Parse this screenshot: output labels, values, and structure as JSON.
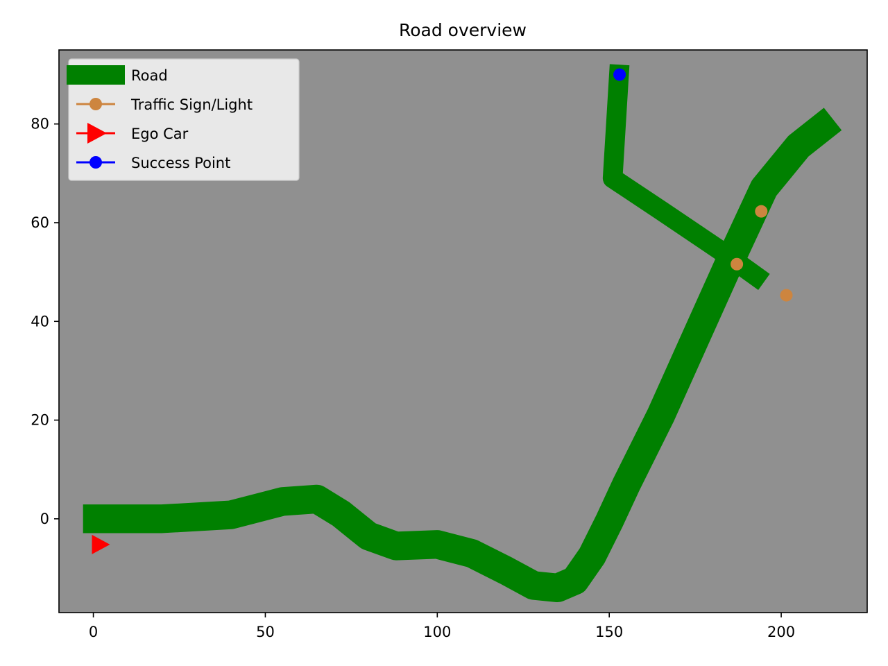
{
  "chart_data": {
    "type": "line",
    "title": "Road overview",
    "xlabel": "",
    "ylabel": "",
    "xlim": [
      -10,
      225
    ],
    "ylim": [
      -19,
      95
    ],
    "x_ticks": [
      0,
      50,
      100,
      150,
      200
    ],
    "y_ticks": [
      0,
      20,
      40,
      60,
      80
    ],
    "grid": false,
    "background_color": "#909090",
    "legend_placement": "upper-left",
    "legend": [
      {
        "label": "Road",
        "color": "#008000",
        "marker": "thick-line"
      },
      {
        "label": "Traffic Sign/Light",
        "color": "#cd853f",
        "marker": "circle"
      },
      {
        "label": "Ego Car",
        "color": "#ff0000",
        "marker": "triangle-right"
      },
      {
        "label": "Success Point",
        "color": "#0000ff",
        "marker": "circle"
      }
    ],
    "series": [
      {
        "name": "Road",
        "color": "#008000",
        "segments": [
          {
            "width": "wide",
            "points": [
              [
                -3,
                0
              ],
              [
                20,
                0
              ],
              [
                40,
                0.8
              ],
              [
                55,
                3.5
              ],
              [
                65,
                4
              ],
              [
                72,
                1
              ],
              [
                80,
                -3.5
              ],
              [
                88,
                -5.5
              ],
              [
                100,
                -5.2
              ],
              [
                110,
                -7
              ],
              [
                120,
                -10.5
              ],
              [
                128,
                -13.5
              ],
              [
                135,
                -14
              ],
              [
                140,
                -12.5
              ],
              [
                145,
                -7.5
              ],
              [
                150,
                -0.5
              ],
              [
                155,
                7
              ],
              [
                165,
                21
              ],
              [
                175,
                36.5
              ],
              [
                185,
                52
              ],
              [
                195,
                67
              ],
              [
                205,
                75.5
              ],
              [
                215,
                81
              ]
            ]
          },
          {
            "width": "narrow",
            "points": [
              [
                153,
                92
              ],
              [
                151,
                69
              ],
              [
                165,
                62.5
              ],
              [
                182,
                54.5
              ],
              [
                195,
                48
              ]
            ]
          }
        ]
      },
      {
        "name": "Traffic Sign/Light",
        "color": "#cd853f",
        "points": [
          [
            194.2,
            62.3
          ],
          [
            187.1,
            51.6
          ],
          [
            201.5,
            45.3
          ]
        ]
      },
      {
        "name": "Ego Car",
        "color": "#ff0000",
        "points": [
          [
            2,
            -5.2
          ]
        ]
      },
      {
        "name": "Success Point",
        "color": "#0000ff",
        "points": [
          [
            153,
            90
          ]
        ]
      }
    ]
  }
}
